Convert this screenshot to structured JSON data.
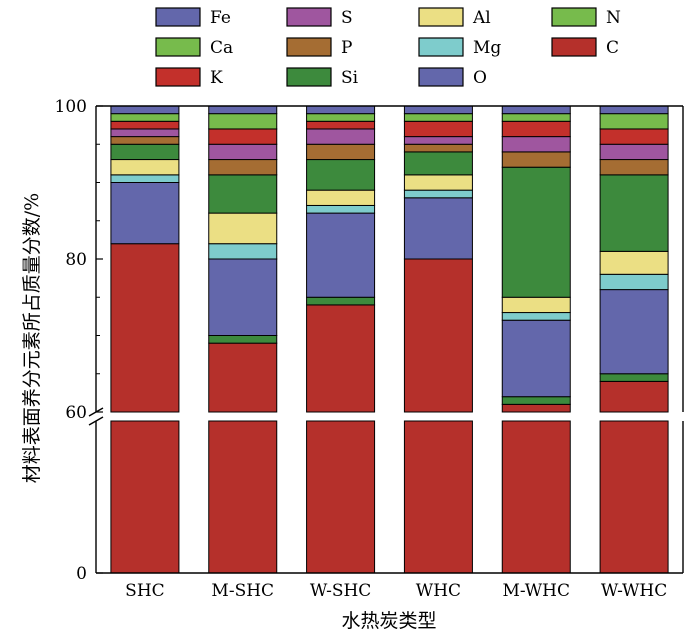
{
  "chart_data": {
    "type": "bar",
    "stacked": true,
    "broken_y_axis": true,
    "xlabel": "水热炭类型",
    "ylabel": "材料表面养分元素所占质量分数/%",
    "ylim": [
      0,
      100
    ],
    "y_ticks": [
      "0",
      "60",
      "80",
      "100"
    ],
    "y_break": [
      0,
      60
    ],
    "legend_position": "top",
    "categories": [
      "SHC",
      "M-SHC",
      "W-SHC",
      "WHC",
      "M-WHC",
      "W-WHC"
    ],
    "series": [
      {
        "name": "C",
        "color": "#b5302b",
        "values": [
          82,
          69,
          74,
          80,
          61,
          64
        ]
      },
      {
        "name": "Si",
        "color": "#3d8a3d",
        "values": [
          0,
          1,
          1,
          0,
          1,
          1
        ]
      },
      {
        "name": "O",
        "color": "#6367ab",
        "values": [
          8,
          10,
          11,
          8,
          10,
          11
        ]
      },
      {
        "name": "Mg",
        "color": "#7ecccc",
        "values": [
          1,
          2,
          1,
          1,
          1,
          2
        ]
      },
      {
        "name": "Al",
        "color": "#ebdf84",
        "values": [
          2,
          4,
          2,
          2,
          2,
          3
        ]
      },
      {
        "name": "Si",
        "color": "#3d8a3d",
        "values": [
          2,
          5,
          4,
          3,
          17,
          10
        ]
      },
      {
        "name": "P",
        "color": "#a56d33",
        "values": [
          1,
          2,
          2,
          1,
          2,
          2
        ]
      },
      {
        "name": "S",
        "color": "#9f569f",
        "values": [
          1,
          2,
          2,
          1,
          2,
          2
        ]
      },
      {
        "name": "K",
        "color": "#c3302b",
        "values": [
          1,
          2,
          1,
          2,
          2,
          2
        ]
      },
      {
        "name": "Ca",
        "color": "#77bb4c",
        "values": [
          1,
          2,
          1,
          1,
          1,
          2
        ]
      },
      {
        "name": "N",
        "color": "#77bb4c",
        "values": [
          0,
          0,
          0,
          0,
          0,
          0
        ]
      },
      {
        "name": "Fe",
        "color": "#6367ab",
        "values": [
          1,
          1,
          1,
          1,
          1,
          1
        ]
      }
    ]
  },
  "legend": [
    {
      "name": "Fe",
      "color": "#6367ab"
    },
    {
      "name": "S",
      "color": "#9f569f"
    },
    {
      "name": "Al",
      "color": "#ebdf84"
    },
    {
      "name": "N",
      "color": "#77bb4c"
    },
    {
      "name": "Ca",
      "color": "#77bb4c"
    },
    {
      "name": "P",
      "color": "#a56d33"
    },
    {
      "name": "Mg",
      "color": "#7ecccc"
    },
    {
      "name": "C",
      "color": "#b5302b"
    },
    {
      "name": "K",
      "color": "#c3302b"
    },
    {
      "name": "Si",
      "color": "#3d8a3d"
    },
    {
      "name": "O",
      "color": "#6367ab"
    }
  ]
}
